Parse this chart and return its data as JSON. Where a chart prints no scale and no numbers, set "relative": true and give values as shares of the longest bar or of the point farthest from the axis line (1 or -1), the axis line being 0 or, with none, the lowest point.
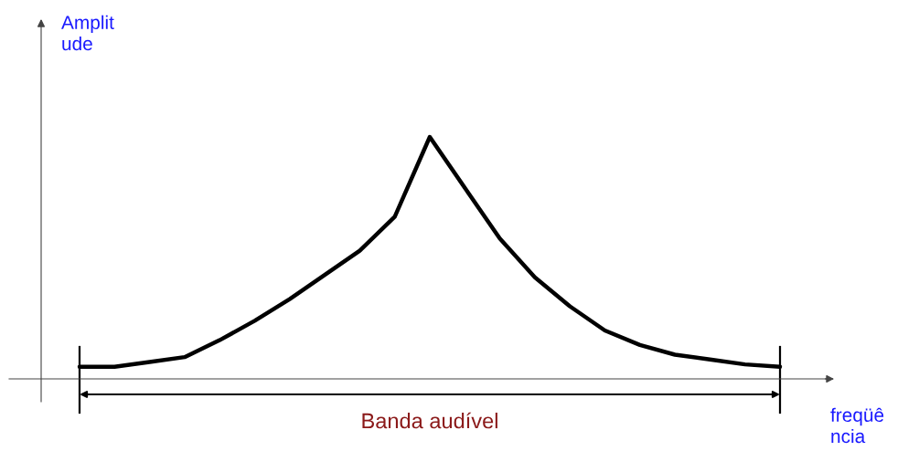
{
  "chart_data": {
    "type": "line",
    "relative": true,
    "categories": [
      null,
      null,
      null,
      null,
      null,
      null,
      null,
      null,
      null,
      null,
      null,
      null,
      null,
      null,
      null,
      null,
      null,
      null,
      null,
      null,
      null
    ],
    "series": [
      {
        "color": "#000000",
        "values": [
          0.05,
          0.05,
          0.07,
          0.09,
          0.16,
          0.24,
          0.33,
          0.43,
          0.53,
          0.67,
          1,
          0.79,
          0.58,
          0.42,
          0.3,
          0.2,
          0.14,
          0.1,
          0.08,
          0.06,
          0.05
        ]
      }
    ],
    "xlabel": "freqüê\nncia",
    "ylabel": "Amplit\nude",
    "annotations": [
      "Banda audível"
    ],
    "line_style": "solid"
  }
}
